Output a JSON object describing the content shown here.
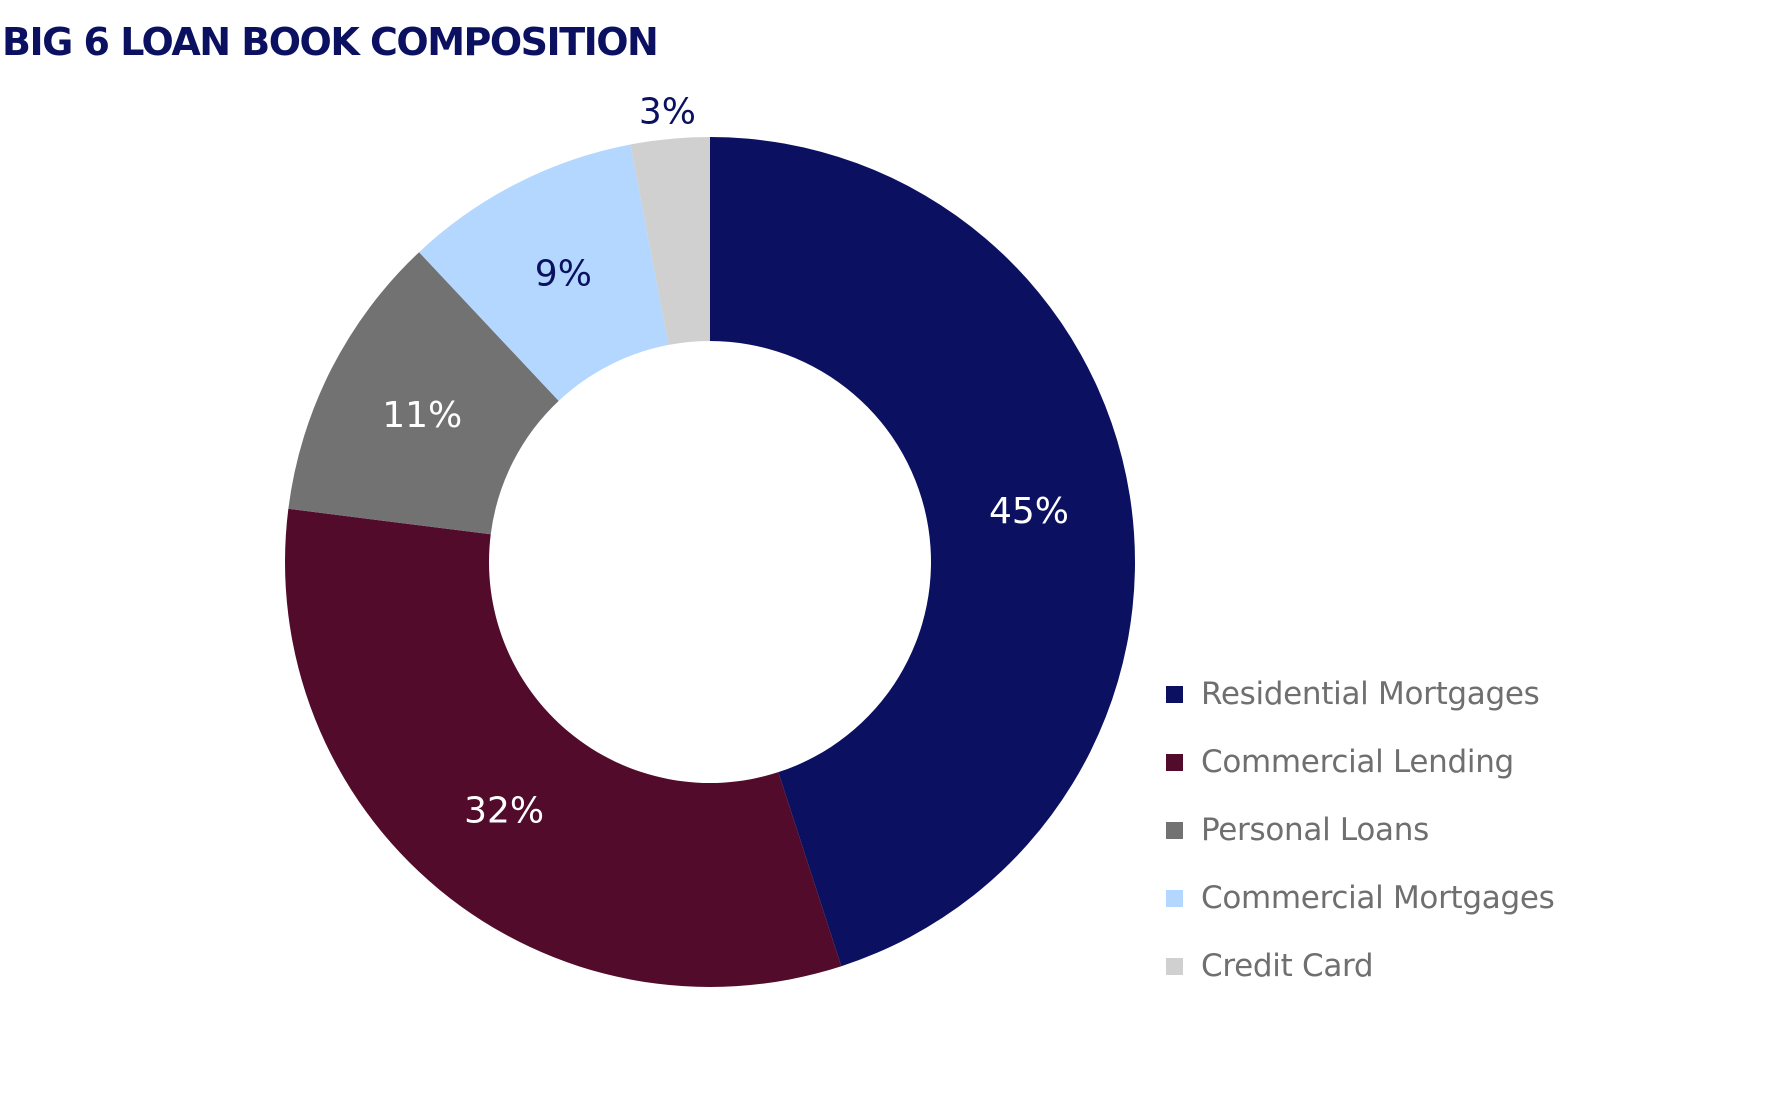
{
  "chart_data": {
    "type": "pie",
    "variant": "donut",
    "title": "BIG 6 LOAN BOOK COMPOSITION",
    "categories": [
      "Residential Mortgages",
      "Commercial Lending",
      "Personal Loans",
      "Commercial Mortgages",
      "Credit Card"
    ],
    "values": [
      45,
      32,
      11,
      9,
      3
    ],
    "data_labels": [
      "45%",
      "32%",
      "11%",
      "9%",
      "3%"
    ],
    "colors": [
      "#0b1160",
      "#520b2b",
      "#727272",
      "#b3d7fe",
      "#d0d0d0"
    ],
    "label_colors": [
      "#ffffff",
      "#ffffff",
      "#ffffff",
      "#0b1160",
      "#0b1160"
    ],
    "legend_position": "bottom-right"
  }
}
